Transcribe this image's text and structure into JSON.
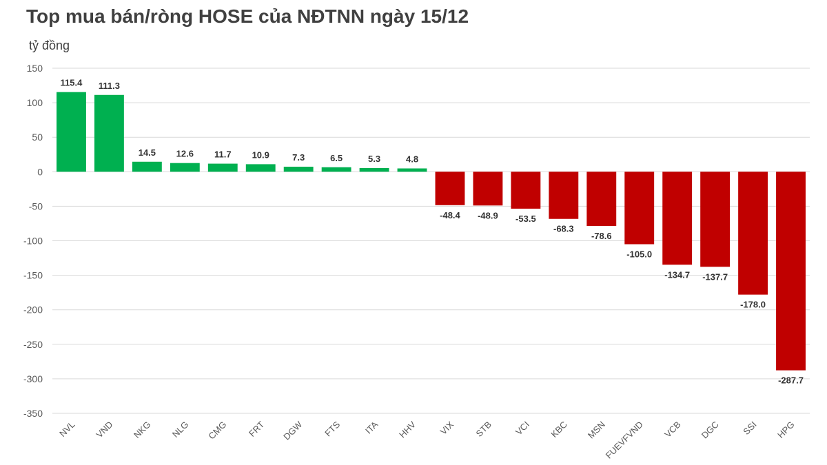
{
  "title": "Top mua bán/ròng HOSE của NĐTNN ngày 15/12",
  "unit_label": "tỷ đồng",
  "colors": {
    "positive": "#00b050",
    "negative": "#c00000",
    "grid": "#d9d9d9"
  },
  "chart_data": {
    "type": "bar",
    "title": "Top mua bán/ròng HOSE của NĐTNN ngày 15/12",
    "ylabel": "tỷ đồng",
    "ylim": [
      -350,
      150
    ],
    "yticks": [
      150,
      100,
      50,
      0,
      -50,
      -100,
      -150,
      -200,
      -250,
      -300,
      -350
    ],
    "grid": true,
    "categories": [
      "NVL",
      "VND",
      "NKG",
      "NLG",
      "CMG",
      "FRT",
      "DGW",
      "FTS",
      "ITA",
      "HHV",
      "VIX",
      "STB",
      "VCI",
      "KBC",
      "MSN",
      "FUEVFVND",
      "VCB",
      "DGC",
      "SSI",
      "HPG"
    ],
    "values": [
      115.4,
      111.3,
      14.5,
      12.6,
      11.7,
      10.9,
      7.3,
      6.5,
      5.3,
      4.8,
      -48.4,
      -48.9,
      -53.5,
      -68.3,
      -78.6,
      -105.0,
      -134.7,
      -137.7,
      -178.0,
      -287.7
    ],
    "data_labels": [
      "115.4",
      "111.3",
      "14.5",
      "12.6",
      "11.7",
      "10.9",
      "7.3",
      "6.5",
      "5.3",
      "4.8",
      "-48.4",
      "-48.9",
      "-53.5",
      "-68.3",
      "-78.6",
      "-105.0",
      "-134.7",
      "-137.7",
      "-178.0",
      "-287.7"
    ]
  }
}
